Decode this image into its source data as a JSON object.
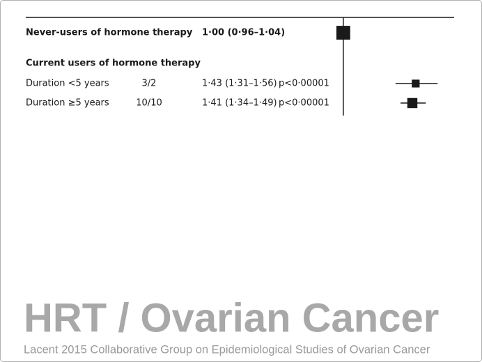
{
  "chart_data": {
    "type": "forest",
    "categories": [
      "Never-users of hormone therapy",
      "Current users of hormone therapy",
      "Duration <5 years",
      "Duration ≥5 years"
    ],
    "bold": [
      true,
      true,
      false,
      false
    ],
    "counts": [
      null,
      null,
      "3/2",
      "10/10"
    ],
    "values": [
      1.0,
      null,
      1.43,
      1.41
    ],
    "lower": [
      0.96,
      null,
      1.31,
      1.34
    ],
    "upper": [
      1.04,
      null,
      1.56,
      1.49
    ],
    "value_labels": [
      "1·00 (0·96–1·04)",
      null,
      "1·43 (1·31–1·56)",
      "1·41 (1·34–1·49)"
    ],
    "p_labels": [
      null,
      null,
      "p<0·00001",
      "p<0·00001"
    ],
    "reference": 1,
    "xlim": [
      0.5,
      1.65
    ],
    "color": "#1a1a1a",
    "title": "HRT / Ovarian Cancer",
    "caption": "Lacent 2015 Collaborative Group on Epidemiological Studies of Ovarian Cancer"
  }
}
